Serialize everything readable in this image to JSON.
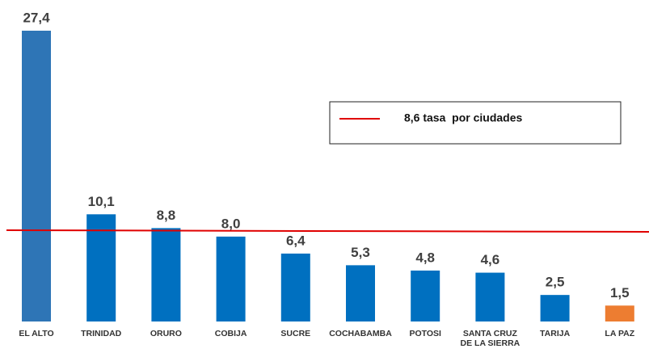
{
  "chart_data": {
    "type": "bar",
    "categories": [
      "EL ALTO",
      "TRINIDAD",
      "ORURO",
      "COBIJA",
      "SUCRE",
      "COCHABAMBA",
      "POTOSI",
      "SANTA CRUZ\nDE LA SIERRA",
      "TARIJA",
      "LA PAZ"
    ],
    "values": [
      27.4,
      10.1,
      8.8,
      8.0,
      6.4,
      5.3,
      4.8,
      4.6,
      2.5,
      1.5
    ],
    "value_labels": [
      "27,4",
      "10,1",
      "8,8",
      "8,0",
      "6,4",
      "5,3",
      "4,8",
      "4,6",
      "2,5",
      "1,5"
    ],
    "colors": [
      "#2e75b6",
      "#0070c0",
      "#0070c0",
      "#0070c0",
      "#0070c0",
      "#0070c0",
      "#0070c0",
      "#0070c0",
      "#0070c0",
      "#ed7d31"
    ],
    "reference_line": {
      "value": 8.6,
      "label": "8,6 tasa  por ciudades",
      "color": "#e00000"
    }
  }
}
